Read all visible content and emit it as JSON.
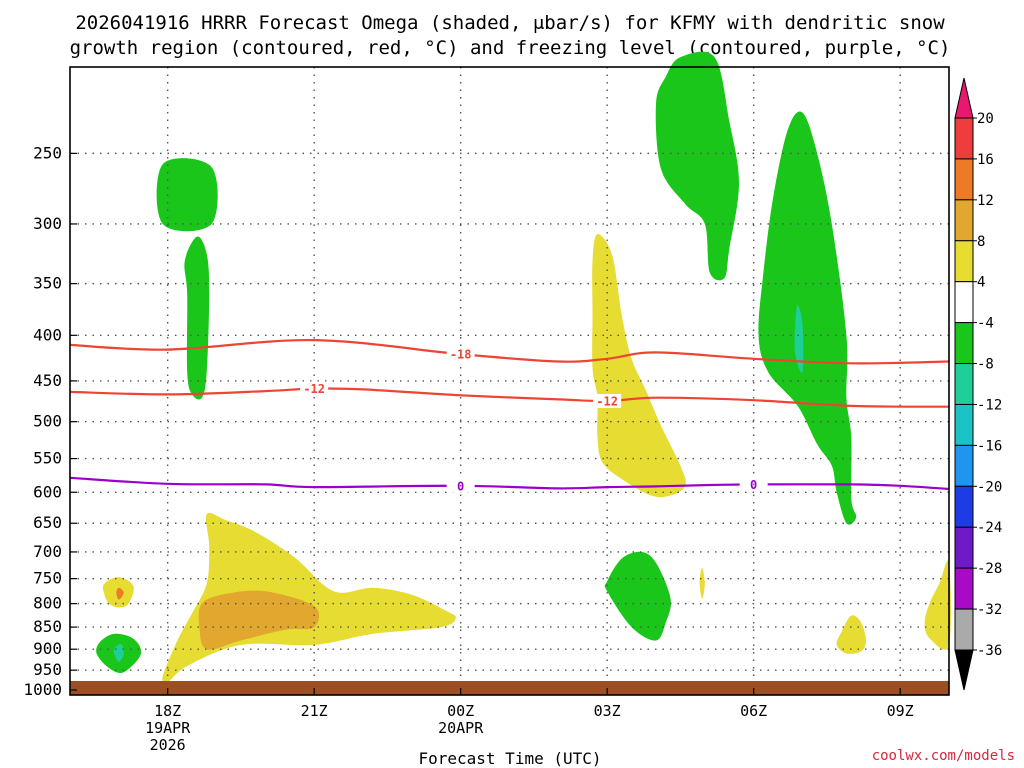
{
  "chart_data": {
    "type": "heatmap",
    "title_lines": [
      "2026041916 HRRR Forecast Omega (shaded, μbar/s) for KFMY with dendritic snow",
      "growth region (contoured, red, °C) and freezing level (contoured, purple, °C)"
    ],
    "xlabel": "Forecast Time (UTC)",
    "ylabel": "",
    "credit": "coolwx.com/models",
    "x_ticks": [
      {
        "hour": 2,
        "lines": [
          "18Z",
          "19APR",
          "2026"
        ]
      },
      {
        "hour": 5,
        "lines": [
          "21Z"
        ]
      },
      {
        "hour": 8,
        "lines": [
          "00Z",
          "20APR"
        ]
      },
      {
        "hour": 11,
        "lines": [
          "03Z"
        ]
      },
      {
        "hour": 14,
        "lines": [
          "06Z"
        ]
      },
      {
        "hour": 17,
        "lines": [
          "09Z"
        ]
      }
    ],
    "xlim_hours": [
      0,
      18
    ],
    "ylim_hpa": [
      1013,
      200
    ],
    "y_ticks": [
      "250",
      "300",
      "350",
      "400",
      "450",
      "500",
      "550",
      "600",
      "650",
      "700",
      "750",
      "800",
      "850",
      "900",
      "950",
      "1000"
    ],
    "colorbar": {
      "labels": [
        "20",
        "16",
        "12",
        "8",
        "4",
        "-4",
        "-8",
        "-12",
        "-16",
        "-20",
        "-24",
        "-28",
        "-32",
        "-36"
      ],
      "colors": [
        "#e8176f",
        "#ee3d3d",
        "#ec7a27",
        "#e2a72e",
        "#e6dc32",
        "#ffffff",
        "#1bc61b",
        "#1ecf97",
        "#1ac4c4",
        "#1e96f0",
        "#1e3ce6",
        "#6e1ac8",
        "#a80ac8",
        "#aaaaaa",
        "#000000"
      ]
    },
    "contours": {
      "dgz_minus18": {
        "label": "-18",
        "color": "#ee4433",
        "points": [
          [
            0,
            410
          ],
          [
            2,
            415
          ],
          [
            5,
            405
          ],
          [
            8,
            420
          ],
          [
            10,
            428
          ],
          [
            11,
            425
          ],
          [
            12,
            418
          ],
          [
            14,
            425
          ],
          [
            16,
            430
          ],
          [
            18,
            428
          ]
        ]
      },
      "dgz_minus12": {
        "label": "-12",
        "color": "#ee4433",
        "points": [
          [
            0,
            463
          ],
          [
            2,
            466
          ],
          [
            4,
            462
          ],
          [
            5,
            459
          ],
          [
            6,
            460
          ],
          [
            8,
            467
          ],
          [
            10,
            472
          ],
          [
            11,
            474
          ],
          [
            12,
            470
          ],
          [
            14,
            473
          ],
          [
            16,
            480
          ],
          [
            18,
            481
          ]
        ]
      },
      "freezing_level": {
        "label": "0",
        "color": "#9900cc",
        "points": [
          [
            0,
            578
          ],
          [
            2,
            587
          ],
          [
            4,
            588
          ],
          [
            5,
            592
          ],
          [
            8,
            590
          ],
          [
            10,
            594
          ],
          [
            11,
            592
          ],
          [
            12,
            591
          ],
          [
            13,
            589
          ],
          [
            14,
            588
          ],
          [
            16,
            588
          ],
          [
            17,
            590
          ],
          [
            18,
            595
          ]
        ]
      }
    },
    "regions": [
      {
        "name": "ascent-18z-upper",
        "color": "#1bc61b",
        "points": [
          [
            1.9,
            257
          ],
          [
            2.9,
            259
          ],
          [
            2.9,
            300
          ],
          [
            1.9,
            300
          ]
        ]
      },
      {
        "name": "ascent-19z-column",
        "color": "#1bc61b",
        "points": [
          [
            2.6,
            310
          ],
          [
            2.8,
            324
          ],
          [
            2.85,
            360
          ],
          [
            2.8,
            440
          ],
          [
            2.7,
            470
          ],
          [
            2.5,
            466
          ],
          [
            2.4,
            440
          ],
          [
            2.4,
            360
          ],
          [
            2.35,
            330
          ]
        ]
      },
      {
        "name": "descent-17z-small",
        "color": "#e6dc32",
        "points": [
          [
            0.7,
            760
          ],
          [
            1.0,
            747
          ],
          [
            1.3,
            765
          ],
          [
            1.2,
            800
          ],
          [
            1.0,
            808
          ],
          [
            0.8,
            800
          ],
          [
            0.7,
            780
          ]
        ]
      },
      {
        "name": "descent-17z-core",
        "color": "#ec7a27",
        "points": [
          [
            1.0,
            768
          ],
          [
            1.1,
            778
          ],
          [
            1.0,
            792
          ],
          [
            0.95,
            778
          ]
        ]
      },
      {
        "name": "ascent-17z-low",
        "color": "#1bc61b",
        "points": [
          [
            0.6,
            885
          ],
          [
            0.9,
            865
          ],
          [
            1.3,
            876
          ],
          [
            1.45,
            912
          ],
          [
            1.1,
            955
          ],
          [
            0.8,
            945
          ],
          [
            0.55,
            912
          ]
        ]
      },
      {
        "name": "ascent-17z-core",
        "color": "#1ecf97",
        "points": [
          [
            0.9,
            900
          ],
          [
            1.05,
            888
          ],
          [
            1.1,
            912
          ],
          [
            1.0,
            930
          ],
          [
            0.92,
            915
          ]
        ]
      },
      {
        "name": "descent-19z-plume",
        "color": "#e6dc32",
        "points": [
          [
            2.8,
            635
          ],
          [
            3.2,
            645
          ],
          [
            3.8,
            665
          ],
          [
            4.6,
            710
          ],
          [
            5.4,
            775
          ],
          [
            6.2,
            768
          ],
          [
            7.0,
            782
          ],
          [
            7.7,
            815
          ],
          [
            7.9,
            830
          ],
          [
            7.6,
            850
          ],
          [
            6.2,
            865
          ],
          [
            5.0,
            890
          ],
          [
            3.5,
            890
          ],
          [
            2.4,
            940
          ],
          [
            2.0,
            980
          ],
          [
            1.9,
            965
          ],
          [
            2.2,
            880
          ],
          [
            2.5,
            820
          ],
          [
            2.8,
            760
          ],
          [
            2.85,
            690
          ]
        ]
      },
      {
        "name": "descent-19z-core",
        "color": "#e2a72e",
        "points": [
          [
            2.7,
            800
          ],
          [
            3.2,
            780
          ],
          [
            4.0,
            775
          ],
          [
            5.0,
            805
          ],
          [
            5.0,
            850
          ],
          [
            4.4,
            856
          ],
          [
            3.5,
            880
          ],
          [
            2.8,
            900
          ],
          [
            2.65,
            850
          ]
        ]
      },
      {
        "name": "descent-03z-column",
        "color": "#e6dc32",
        "points": [
          [
            10.8,
            308
          ],
          [
            11.1,
            325
          ],
          [
            11.3,
            380
          ],
          [
            11.5,
            425
          ],
          [
            11.8,
            462
          ],
          [
            12.1,
            505
          ],
          [
            12.5,
            560
          ],
          [
            12.6,
            590
          ],
          [
            12.3,
            605
          ],
          [
            11.9,
            605
          ],
          [
            11.3,
            580
          ],
          [
            10.9,
            555
          ],
          [
            10.8,
            520
          ],
          [
            10.8,
            470
          ],
          [
            10.7,
            435
          ],
          [
            10.7,
            380
          ],
          [
            10.7,
            330
          ]
        ]
      },
      {
        "name": "ascent-04z-upper",
        "color": "#1bc61b",
        "points": [
          [
            12.0,
            220
          ],
          [
            12.2,
            205
          ],
          [
            12.5,
            195
          ],
          [
            13.2,
            195
          ],
          [
            13.5,
            230
          ],
          [
            13.7,
            270
          ],
          [
            13.5,
            320
          ],
          [
            13.4,
            345
          ],
          [
            13.1,
            340
          ],
          [
            13.0,
            300
          ],
          [
            12.6,
            285
          ],
          [
            12.1,
            260
          ]
        ]
      },
      {
        "name": "ascent-07z-column",
        "color": "#1bc61b",
        "points": [
          [
            14.4,
            280
          ],
          [
            14.7,
            235
          ],
          [
            15.0,
            225
          ],
          [
            15.3,
            250
          ],
          [
            15.6,
            300
          ],
          [
            15.9,
            400
          ],
          [
            15.9,
            470
          ],
          [
            16.0,
            520
          ],
          [
            16.0,
            610
          ],
          [
            16.1,
            640
          ],
          [
            15.9,
            650
          ],
          [
            15.7,
            600
          ],
          [
            15.6,
            560
          ],
          [
            15.3,
            530
          ],
          [
            14.9,
            480
          ],
          [
            14.3,
            440
          ],
          [
            14.1,
            400
          ],
          [
            14.2,
            340
          ]
        ]
      },
      {
        "name": "ascent-07z-core",
        "color": "#1ecf97",
        "points": [
          [
            14.9,
            370
          ],
          [
            15.0,
            390
          ],
          [
            15.0,
            440
          ],
          [
            14.85,
            420
          ],
          [
            14.85,
            390
          ]
        ]
      },
      {
        "name": "ascent-04z-low",
        "color": "#1bc61b",
        "points": [
          [
            11.0,
            755
          ],
          [
            11.3,
            712
          ],
          [
            11.7,
            700
          ],
          [
            12.0,
            720
          ],
          [
            12.3,
            790
          ],
          [
            12.2,
            840
          ],
          [
            12.0,
            880
          ],
          [
            11.5,
            850
          ],
          [
            11.0,
            775
          ]
        ]
      },
      {
        "name": "descent-05z-sliver",
        "color": "#e6dc32",
        "points": [
          [
            12.9,
            745
          ],
          [
            12.95,
            730
          ],
          [
            13.0,
            760
          ],
          [
            12.95,
            790
          ],
          [
            12.9,
            770
          ]
        ]
      },
      {
        "name": "descent-08z-small",
        "color": "#e6dc32",
        "points": [
          [
            15.8,
            860
          ],
          [
            16.0,
            825
          ],
          [
            16.2,
            840
          ],
          [
            16.3,
            880
          ],
          [
            16.2,
            905
          ],
          [
            15.9,
            910
          ],
          [
            15.7,
            890
          ]
        ]
      },
      {
        "name": "descent-10z-edge",
        "color": "#e6dc32",
        "points": [
          [
            18.0,
            720
          ],
          [
            18.0,
            890
          ],
          [
            17.6,
            875
          ],
          [
            17.5,
            840
          ],
          [
            17.6,
            800
          ],
          [
            17.8,
            760
          ]
        ]
      }
    ]
  }
}
